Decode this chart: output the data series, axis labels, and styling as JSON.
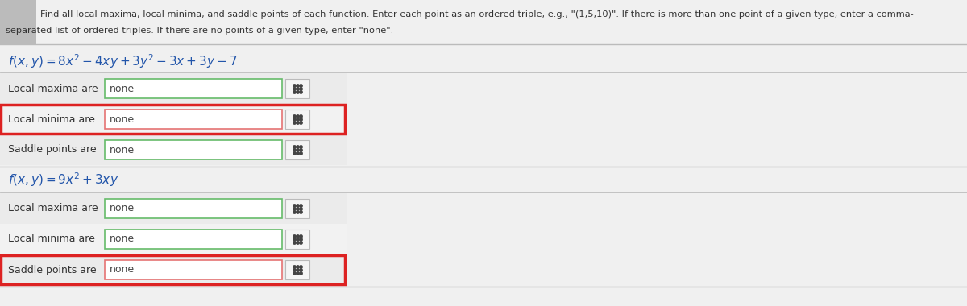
{
  "bg_color": "#f0f0f0",
  "white": "#ffffff",
  "light_row_bg": "#efefef",
  "highlighted_row_bg": "#f5f5f5",
  "instruction_line1": "Find all local maxima, local minima, and saddle points of each function. Enter each point as an ordered triple, e.g., \"(1,5,10)\". If there is more than one point of a given type, enter a comma-",
  "instruction_line2": "separated list of ordered triples. If there are no points of a given type, enter \"none\".",
  "func1_label": "$f(x, y) = 8x^2 - 4xy + 3y^2 - 3x + 3y - 7$",
  "func2_label": "$f(x, y) = 9x^2 + 3xy$",
  "section1_rows": [
    {
      "label": "Local maxima are",
      "value": "none",
      "red_outer": false
    },
    {
      "label": "Local minima are",
      "value": "none",
      "red_outer": true
    },
    {
      "label": "Saddle points are",
      "value": "none",
      "red_outer": false
    }
  ],
  "section2_rows": [
    {
      "label": "Local maxima are",
      "value": "none",
      "red_outer": false
    },
    {
      "label": "Local minima are",
      "value": "none",
      "red_outer": false
    },
    {
      "label": "Saddle points are",
      "value": "none",
      "red_outer": true
    }
  ],
  "label_color": "#333333",
  "value_color": "#444444",
  "func_color": "#2255aa",
  "grid_icon_color": "#444444",
  "instruction_color": "#333333",
  "header_bg": "#bbbbbb",
  "separator_color": "#bbbbbb",
  "box_green": "#66bb6a",
  "box_red_inner": "#e57373",
  "red_outer": "#dd2222",
  "icon_border": "#bbbbbb",
  "icon_bg": "#f5f5f5"
}
